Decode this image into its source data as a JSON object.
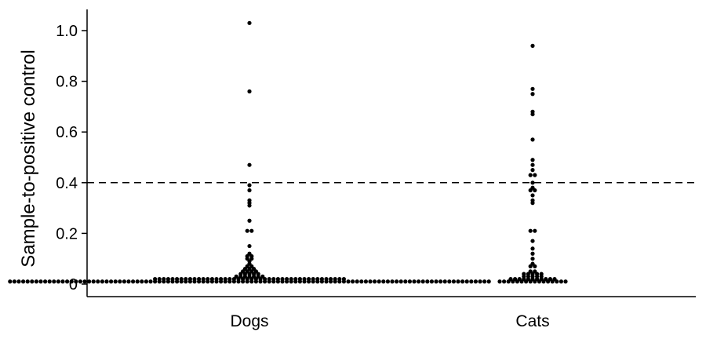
{
  "chart_data": {
    "type": "scatter",
    "subtype": "dot-strip (beeswarm)",
    "ylabel": "Sample-to-positive control",
    "xlabel": "",
    "ylim": [
      0,
      1.05
    ],
    "yticks": [
      {
        "value": 0,
        "label": "0"
      },
      {
        "value": 0.2,
        "label": "0.2"
      },
      {
        "value": 0.4,
        "label": "0.4"
      },
      {
        "value": 0.6,
        "label": "0.6"
      },
      {
        "value": 0.8,
        "label": "0.8"
      },
      {
        "value": 1.0,
        "label": "1.0"
      }
    ],
    "categories": [
      "Dogs",
      "Cats"
    ],
    "threshold": {
      "value": 0.4,
      "style": "dashed"
    },
    "grid": false,
    "point_color": "#000000",
    "series": [
      {
        "category": "Dogs",
        "values": [
          1.03,
          0.76,
          0.47,
          0.39,
          0.37,
          0.33,
          0.32,
          0.31,
          0.25,
          0.21,
          0.21,
          0.15,
          0.12,
          0.11,
          0.11,
          0.1,
          0.1,
          0.09,
          0.08,
          0.07,
          0.07,
          0.06,
          0.06,
          0.06,
          0.05,
          0.05,
          0.05,
          0.05,
          0.04,
          0.04,
          0.04,
          0.04,
          0.04,
          0.03,
          0.03,
          0.03,
          0.03,
          0.03,
          0.03,
          0.03,
          0.02,
          0.02,
          0.02,
          0.02,
          0.02,
          0.02,
          0.02,
          0.02,
          0.02,
          0.02,
          0.02,
          0.02,
          0.02,
          0.02,
          0.02,
          0.02,
          0.02,
          0.02,
          0.02,
          0.02,
          0.02,
          0.02,
          0.02,
          0.02,
          0.02,
          0.02,
          0.02,
          0.02,
          0.02,
          0.02,
          0.02,
          0.02,
          0.02,
          0.02,
          0.02,
          0.02,
          0.02,
          0.02,
          0.02,
          0.02,
          0.02,
          0.02,
          0.02,
          0.02,
          0.01,
          0.01,
          0.01,
          0.01,
          0.01,
          0.01,
          0.01,
          0.01,
          0.01,
          0.01,
          0.01,
          0.01,
          0.01,
          0.01,
          0.01,
          0.01,
          0.01,
          0.01,
          0.01,
          0.01,
          0.01,
          0.01,
          0.01,
          0.01,
          0.01,
          0.01,
          0.01,
          0.01,
          0.01,
          0.01,
          0.01,
          0.01,
          0.01,
          0.01,
          0.01,
          0.01,
          0.01,
          0.01,
          0.01,
          0.01,
          0.01,
          0.01,
          0.01,
          0.01,
          0.01,
          0.01,
          0.01,
          0.01,
          0.01,
          0.01,
          0.01,
          0.01,
          0.01,
          0.01,
          0.01,
          0.01,
          0.01,
          0.01,
          0.01,
          0.01,
          0.01,
          0.01,
          0.01,
          0.01,
          0.01,
          0.01,
          0.01,
          0.01,
          0.01,
          0.01,
          0.01,
          0.01,
          0.01,
          0.01,
          0.01,
          0.01,
          0.01,
          0.01,
          0.01,
          0.01,
          0.01,
          0.01,
          0.01,
          0.01,
          0.01,
          0.01,
          0.01,
          0.01,
          0.01,
          0.01,
          0.01,
          0.01,
          0.01,
          0.01,
          0.01,
          0.01,
          0.01,
          0.01,
          0.01,
          0.01,
          0.01,
          0.01,
          0.01,
          0.01,
          0.01,
          0.01,
          0.01,
          0.01,
          0.01,
          0.01
        ]
      },
      {
        "category": "Cats",
        "values": [
          0.94,
          0.77,
          0.75,
          0.68,
          0.67,
          0.57,
          0.49,
          0.47,
          0.45,
          0.43,
          0.43,
          0.4,
          0.38,
          0.37,
          0.37,
          0.35,
          0.33,
          0.32,
          0.21,
          0.21,
          0.17,
          0.14,
          0.12,
          0.1,
          0.08,
          0.07,
          0.07,
          0.05,
          0.05,
          0.04,
          0.04,
          0.04,
          0.04,
          0.04,
          0.03,
          0.03,
          0.03,
          0.03,
          0.03,
          0.02,
          0.02,
          0.02,
          0.02,
          0.02,
          0.02,
          0.02,
          0.02,
          0.02,
          0.02,
          0.02,
          0.01,
          0.01,
          0.01,
          0.01,
          0.01,
          0.01,
          0.01,
          0.01,
          0.01,
          0.01,
          0.01,
          0.01,
          0.01,
          0.01,
          0.01,
          0.01
        ]
      }
    ]
  }
}
